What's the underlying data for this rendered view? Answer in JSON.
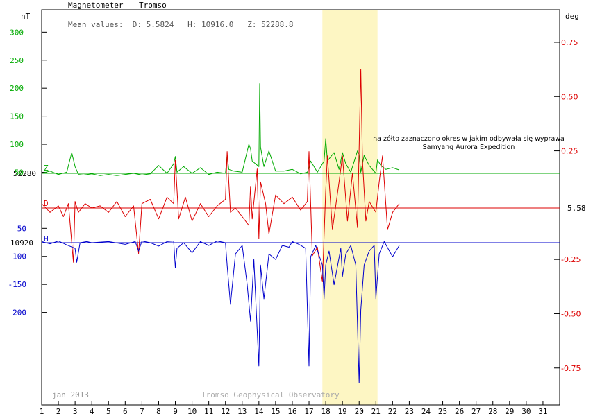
{
  "header": {
    "instrument": "Magnetometer",
    "station": "Tromso",
    "mean_values": "Mean values:  D: 5.5824   H: 10916.0   Z: 52288.8"
  },
  "axes": {
    "left_unit": "nT",
    "right_unit": "deg",
    "left_green_ticks": [
      "300",
      "250",
      "200",
      "150",
      "100",
      "50"
    ],
    "left_blue_ticks": [
      "-50",
      "-100",
      "-150",
      "-200"
    ],
    "right_ticks": [
      "0.75",
      "0.50",
      "0.25",
      "-0.25",
      "-0.50",
      "-0.75"
    ],
    "z_baseline_label": "52280",
    "h_baseline_label": "10920",
    "d_baseline_label": "5.58",
    "x_ticks": [
      "1",
      "2",
      "3",
      "4",
      "5",
      "6",
      "7",
      "8",
      "9",
      "10",
      "11",
      "12",
      "13",
      "14",
      "15",
      "16",
      "17",
      "18",
      "19",
      "20",
      "21",
      "22",
      "23",
      "24",
      "25",
      "26",
      "27",
      "28",
      "29",
      "30",
      "31"
    ]
  },
  "footer": {
    "month": "jan 2013",
    "source": "Tromso Geophysical Observatory"
  },
  "annotation": {
    "line1": "na żółto zaznaczono okres w jakim odbywała się wyprawa",
    "line2": "Samyang Aurora Expedition"
  },
  "series_tags": {
    "z": "Z",
    "d": "D",
    "h": "H"
  },
  "colors": {
    "z": "#00aa00",
    "d": "#dd0000",
    "h": "#0000cc",
    "highlight": "#fdf6c3",
    "frame": "#000000"
  },
  "chart_data": {
    "type": "line",
    "x_unit": "day of January 2013",
    "xlim": [
      1,
      32
    ],
    "highlight_days": [
      17.8,
      21.1
    ],
    "left_axis_nT": {
      "ylim": [
        -365,
        340
      ],
      "green_ticks": [
        300,
        250,
        200,
        150,
        100,
        50
      ],
      "blue_ticks": [
        -50,
        -100,
        -150,
        -200
      ]
    },
    "right_axis_deg": {
      "ylim": [
        -0.92,
        0.9
      ],
      "ticks": [
        0.75,
        0.5,
        0.25,
        -0.25,
        -0.5,
        -0.75
      ]
    },
    "baselines": {
      "Z": 52280,
      "H": 10920,
      "D": 5.58
    },
    "series": [
      {
        "name": "Z",
        "unit": "nT",
        "baseline_offset": 8,
        "x": [
          1.0,
          1.5,
          2.0,
          2.5,
          2.8,
          3.0,
          3.2,
          3.5,
          4.0,
          4.5,
          5.0,
          5.5,
          6.0,
          6.5,
          7.0,
          7.5,
          8.0,
          8.5,
          8.9,
          9.0,
          9.1,
          9.5,
          10.0,
          10.5,
          11.0,
          11.5,
          12.0,
          12.1,
          12.2,
          12.5,
          13.0,
          13.4,
          13.5,
          13.6,
          14.0,
          14.05,
          14.1,
          14.3,
          14.6,
          15.0,
          15.5,
          16.0,
          16.5,
          16.9,
          17.0,
          17.1,
          17.5,
          17.9,
          18.0,
          18.1,
          18.5,
          18.8,
          19.0,
          19.2,
          19.5,
          19.9,
          20.0,
          20.1,
          20.3,
          20.6,
          21.0,
          21.1,
          21.3,
          21.6,
          22.0,
          22.4
        ],
        "y": [
          8,
          12,
          6,
          10,
          45,
          20,
          6,
          5,
          7,
          4,
          6,
          4,
          6,
          8,
          5,
          7,
          22,
          8,
          25,
          38,
          10,
          20,
          8,
          18,
          6,
          10,
          8,
          40,
          15,
          12,
          10,
          60,
          52,
          30,
          20,
          168,
          55,
          20,
          48,
          12,
          12,
          15,
          7,
          10,
          18,
          30,
          10,
          30,
          70,
          30,
          45,
          15,
          45,
          25,
          10,
          48,
          42,
          10,
          40,
          22,
          8,
          32,
          22,
          15,
          18,
          14
        ]
      },
      {
        "name": "D",
        "unit": "deg",
        "baseline_offset": 0.0,
        "x": [
          1.0,
          1.5,
          2.0,
          2.3,
          2.6,
          2.9,
          3.0,
          3.2,
          3.6,
          4.0,
          4.5,
          5.0,
          5.5,
          6.0,
          6.5,
          6.8,
          7.0,
          7.5,
          8.0,
          8.5,
          8.9,
          9.0,
          9.2,
          9.6,
          10.0,
          10.5,
          11.0,
          11.5,
          12.0,
          12.1,
          12.3,
          12.6,
          13.0,
          13.4,
          13.5,
          13.6,
          13.9,
          14.0,
          14.1,
          14.4,
          14.6,
          15.0,
          15.5,
          16.0,
          16.5,
          16.9,
          17.0,
          17.2,
          17.5,
          17.8,
          18.0,
          18.1,
          18.4,
          18.8,
          19.0,
          19.3,
          19.6,
          19.9,
          20.1,
          20.2,
          20.4,
          20.6,
          21.0,
          21.2,
          21.4,
          21.7,
          22.0,
          22.4
        ],
        "y": [
          0.02,
          -0.02,
          0.01,
          -0.04,
          0.02,
          -0.25,
          0.03,
          -0.02,
          0.02,
          0.0,
          0.01,
          -0.02,
          0.03,
          -0.04,
          0.01,
          -0.21,
          0.02,
          0.04,
          -0.05,
          0.05,
          0.02,
          0.22,
          -0.05,
          0.05,
          -0.06,
          0.02,
          -0.04,
          0.01,
          0.04,
          0.26,
          -0.02,
          0.0,
          -0.04,
          -0.08,
          0.1,
          -0.05,
          0.18,
          -0.14,
          0.12,
          0.02,
          -0.12,
          0.06,
          0.02,
          0.05,
          -0.01,
          0.03,
          0.26,
          -0.22,
          -0.18,
          -0.34,
          0.08,
          0.24,
          -0.1,
          0.12,
          0.24,
          -0.06,
          0.16,
          -0.09,
          0.64,
          0.22,
          -0.06,
          0.03,
          -0.02,
          0.12,
          0.24,
          -0.1,
          -0.02,
          0.02
        ]
      },
      {
        "name": "H",
        "unit": "nT",
        "baseline_offset": 0,
        "x": [
          1.0,
          1.5,
          2.0,
          2.5,
          3.0,
          3.1,
          3.3,
          3.7,
          4.0,
          5.0,
          6.0,
          6.6,
          6.8,
          7.0,
          7.5,
          8.0,
          8.5,
          8.9,
          9.0,
          9.1,
          9.5,
          10.0,
          10.5,
          11.0,
          11.5,
          12.0,
          12.1,
          12.3,
          12.6,
          13.0,
          13.3,
          13.5,
          13.7,
          14.0,
          14.1,
          14.3,
          14.6,
          15.0,
          15.4,
          15.8,
          16.0,
          16.4,
          16.8,
          17.0,
          17.1,
          17.4,
          17.8,
          17.9,
          18.0,
          18.2,
          18.5,
          18.9,
          19.0,
          19.2,
          19.5,
          19.8,
          20.0,
          20.1,
          20.3,
          20.6,
          20.9,
          21.0,
          21.2,
          21.5,
          22.0,
          22.4
        ],
        "y": [
          2,
          -2,
          3,
          -4,
          -10,
          -35,
          0,
          2,
          0,
          2,
          -3,
          2,
          -15,
          3,
          0,
          -6,
          2,
          3,
          -45,
          -10,
          0,
          -18,
          2,
          -5,
          3,
          0,
          -40,
          -110,
          -20,
          -5,
          -75,
          -140,
          -30,
          -220,
          -40,
          -100,
          -20,
          -30,
          -5,
          -8,
          2,
          -3,
          -10,
          -220,
          -25,
          -5,
          -40,
          -100,
          -40,
          -15,
          -75,
          -10,
          -60,
          -20,
          -5,
          -40,
          -250,
          -120,
          -40,
          -15,
          -5,
          -100,
          -20,
          2,
          -25,
          -5
        ]
      }
    ]
  }
}
